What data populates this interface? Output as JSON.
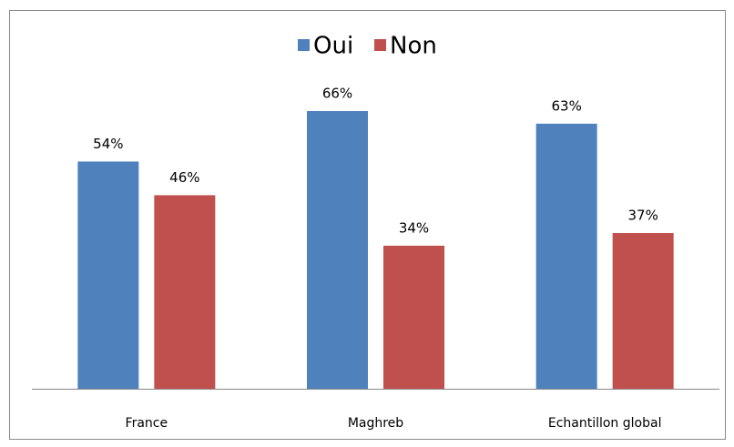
{
  "chart_data": {
    "type": "bar",
    "categories": [
      "France",
      "Maghreb",
      "Echantillon global"
    ],
    "series": [
      {
        "name": "Oui",
        "color": "#4f81bd",
        "values": [
          54,
          66,
          63
        ],
        "value_labels": [
          "54%",
          "66%",
          "63%"
        ]
      },
      {
        "name": "Non",
        "color": "#c0504d",
        "values": [
          46,
          34,
          37
        ],
        "value_labels": [
          "46%",
          "34%",
          "37%"
        ]
      }
    ],
    "legend": "top"
  }
}
